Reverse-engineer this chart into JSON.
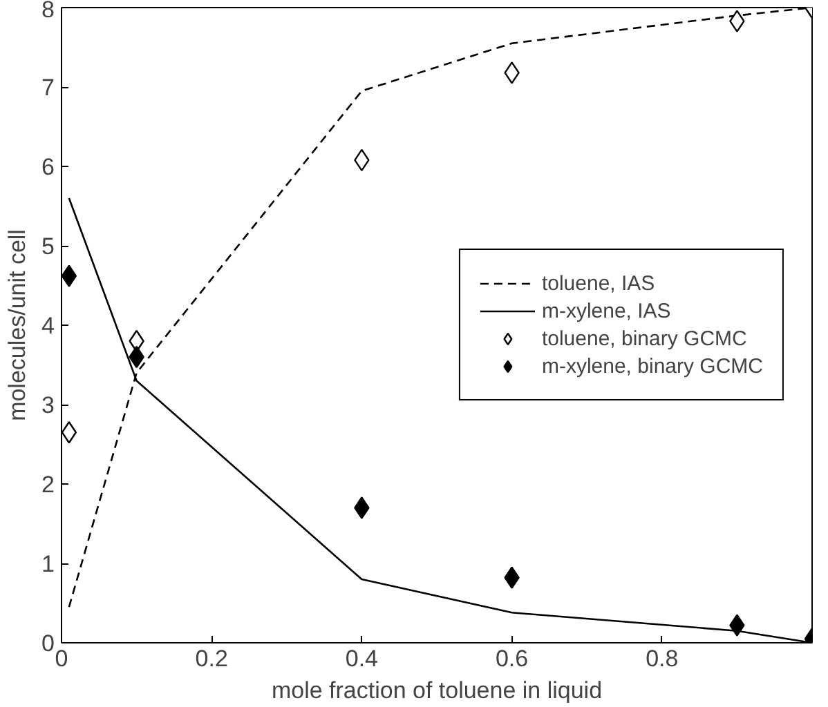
{
  "chart_data": {
    "type": "line",
    "xlabel": "mole fraction of toluene in liquid",
    "ylabel": "molecules/unit cell",
    "x": [
      0.01,
      0.1,
      0.4,
      0.6,
      0.9,
      1.0
    ],
    "xlim": [
      0,
      1
    ],
    "ylim": [
      0,
      8
    ],
    "xticks": [
      0,
      0.2,
      0.4,
      0.6,
      0.8
    ],
    "yticks": [
      0,
      1,
      2,
      3,
      4,
      5,
      6,
      7,
      8
    ],
    "grid": false,
    "legend": "right",
    "series": [
      {
        "name": "toluene, IAS",
        "line_style": "dashed",
        "color": "#000000",
        "values": [
          0.45,
          3.4,
          6.95,
          7.55,
          7.9,
          8.0
        ]
      },
      {
        "name": "m-xylene, IAS",
        "line_style": "solid",
        "color": "#000000",
        "values": [
          5.6,
          3.3,
          0.8,
          0.38,
          0.15,
          0.0
        ]
      },
      {
        "name": "toluene, binary GCMC",
        "type": "scatter",
        "marker": "diamond",
        "color": "#ffffff",
        "values": [
          2.65,
          3.8,
          6.08,
          7.18,
          7.83,
          8.0
        ]
      },
      {
        "name": "m-xylene, binary GCMC",
        "type": "scatter",
        "marker": "diamond",
        "color": "#000000",
        "values": [
          4.62,
          3.6,
          1.7,
          0.82,
          0.22,
          0.05
        ]
      }
    ]
  }
}
